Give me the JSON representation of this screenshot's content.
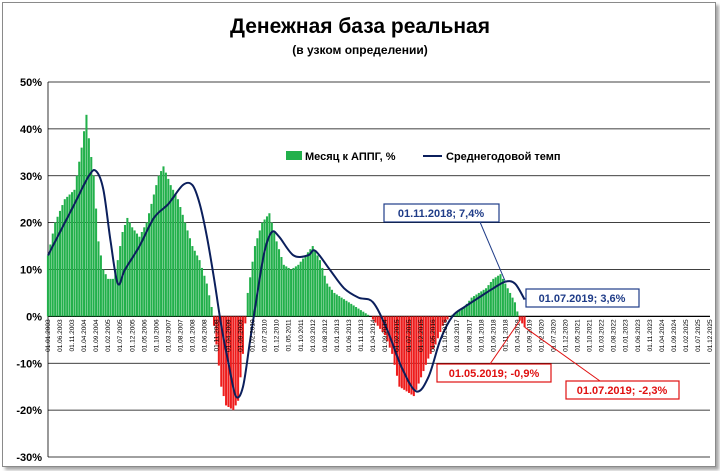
{
  "chart_data": {
    "type": "bar",
    "title": "Денежная база реальная",
    "subtitle": "(в узком определении)",
    "ylim": [
      -30,
      50
    ],
    "yticks": [
      -30,
      -20,
      -10,
      0,
      10,
      20,
      30,
      40,
      50
    ],
    "ytick_suffix": "%",
    "x_tick_labels": [
      "01.01.2003",
      "01.06.2003",
      "01.11.2003",
      "01.04.2004",
      "01.09.2004",
      "01.02.2005",
      "01.07.2005",
      "01.12.2005",
      "01.05.2006",
      "01.10.2006",
      "01.03.2007",
      "01.08.2007",
      "01.01.2008",
      "01.06.2008",
      "01.11.2008",
      "01.04.2009",
      "01.09.2009",
      "01.02.2010",
      "01.07.2010",
      "01.12.2010",
      "01.05.2011",
      "01.10.2011",
      "01.03.2012",
      "01.08.2012",
      "01.01.2013",
      "01.06.2013",
      "01.11.2013",
      "01.04.2014",
      "01.09.2014",
      "01.02.2015",
      "01.07.2015",
      "01.12.2015",
      "01.05.2016",
      "01.10.2016",
      "01.03.2017",
      "01.08.2017",
      "01.01.2018",
      "01.06.2018",
      "01.11.2018",
      "01.04.2019",
      "01.09.2019",
      "01.02.2020",
      "01.07.2020",
      "01.12.2020",
      "01.05.2021",
      "01.10.2021",
      "01.03.2022",
      "01.08.2022",
      "01.01.2023",
      "01.06.2023",
      "01.11.2023",
      "01.04.2024",
      "01.09.2024",
      "01.02.2025",
      "01.07.2025",
      "01.12.2025"
    ],
    "x_start": "01.01.2003",
    "x_end": "01.12.2025",
    "legend": {
      "placement": "top-center",
      "bars_label": "Месяц к АППГ, %",
      "line_label": "Среднегодовой темп"
    },
    "colors": {
      "positive_bar": "#22b04b",
      "negative_bar": "#ee1c1c",
      "line": "#0b1f5c",
      "ann_blue": "#1f3c88",
      "ann_red": "#e01010",
      "grid": "#000000"
    },
    "bar_series": {
      "name": "Месяц к АППГ, %",
      "anchors": [
        [
          "01.01.2003",
          13
        ],
        [
          "01.04.2003",
          20
        ],
        [
          "01.08.2003",
          25
        ],
        [
          "01.12.2003",
          27
        ],
        [
          "01.03.2004",
          36
        ],
        [
          "01.05.2004",
          43
        ],
        [
          "01.06.2004",
          38
        ],
        [
          "01.08.2004",
          30
        ],
        [
          "01.10.2004",
          16
        ],
        [
          "01.12.2004",
          10
        ],
        [
          "01.02.2005",
          8
        ],
        [
          "01.04.2005",
          8
        ],
        [
          "01.06.2005",
          12
        ],
        [
          "01.08.2005",
          18
        ],
        [
          "01.10.2005",
          21
        ],
        [
          "01.12.2005",
          19
        ],
        [
          "01.03.2006",
          17
        ],
        [
          "01.06.2006",
          20
        ],
        [
          "01.09.2006",
          26
        ],
        [
          "01.11.2006",
          30
        ],
        [
          "01.01.2007",
          32
        ],
        [
          "01.04.2007",
          28
        ],
        [
          "01.07.2007",
          25
        ],
        [
          "01.10.2007",
          20
        ],
        [
          "01.01.2008",
          15
        ],
        [
          "01.04.2008",
          12
        ],
        [
          "01.07.2008",
          7
        ],
        [
          "01.09.2008",
          2
        ],
        [
          "01.11.2008",
          -6
        ],
        [
          "01.01.2009",
          -15
        ],
        [
          "01.03.2009",
          -19
        ],
        [
          "01.06.2009",
          -20
        ],
        [
          "01.08.2009",
          -18
        ],
        [
          "01.10.2009",
          -8
        ],
        [
          "01.12.2009",
          5
        ],
        [
          "01.03.2010",
          15
        ],
        [
          "01.06.2010",
          20
        ],
        [
          "01.09.2010",
          22
        ],
        [
          "01.12.2010",
          16
        ],
        [
          "01.03.2011",
          11
        ],
        [
          "01.06.2011",
          10
        ],
        [
          "01.09.2011",
          11
        ],
        [
          "01.12.2011",
          13
        ],
        [
          "01.03.2012",
          15
        ],
        [
          "01.06.2012",
          12
        ],
        [
          "01.09.2012",
          7
        ],
        [
          "01.12.2012",
          5
        ],
        [
          "01.03.2013",
          4
        ],
        [
          "01.06.2013",
          3
        ],
        [
          "01.09.2013",
          2
        ],
        [
          "01.12.2013",
          1
        ],
        [
          "01.03.2014",
          0
        ],
        [
          "01.06.2014",
          -2
        ],
        [
          "01.09.2014",
          -4
        ],
        [
          "01.12.2014",
          -8
        ],
        [
          "01.03.2015",
          -15
        ],
        [
          "01.06.2015",
          -16
        ],
        [
          "01.09.2015",
          -17
        ],
        [
          "01.12.2015",
          -13
        ],
        [
          "01.03.2016",
          -9
        ],
        [
          "01.06.2016",
          -6
        ],
        [
          "01.09.2016",
          -2
        ],
        [
          "01.12.2016",
          0
        ],
        [
          "01.03.2017",
          1
        ],
        [
          "01.06.2017",
          2
        ],
        [
          "01.09.2017",
          4
        ],
        [
          "01.12.2017",
          5
        ],
        [
          "01.03.2018",
          6
        ],
        [
          "01.06.2018",
          8
        ],
        [
          "01.09.2018",
          9
        ],
        [
          "01.11.2018",
          7
        ],
        [
          "01.01.2019",
          5
        ],
        [
          "01.03.2019",
          3
        ],
        [
          "01.05.2019",
          -0.9
        ],
        [
          "01.06.2019",
          -1.5
        ],
        [
          "01.07.2019",
          -2.3
        ]
      ]
    },
    "line_series": {
      "name": "Среднегодовой темп",
      "anchors": [
        [
          "01.01.2003",
          13
        ],
        [
          "01.06.2003",
          18
        ],
        [
          "01.12.2003",
          24
        ],
        [
          "01.06.2004",
          30
        ],
        [
          "01.09.2004",
          31
        ],
        [
          "01.12.2004",
          27
        ],
        [
          "01.03.2005",
          16
        ],
        [
          "01.06.2005",
          7
        ],
        [
          "01.09.2005",
          10
        ],
        [
          "01.03.2006",
          15
        ],
        [
          "01.09.2006",
          21
        ],
        [
          "01.03.2007",
          24
        ],
        [
          "01.09.2007",
          28
        ],
        [
          "01.01.2008",
          28
        ],
        [
          "01.04.2008",
          24
        ],
        [
          "01.07.2008",
          17
        ],
        [
          "01.10.2008",
          8
        ],
        [
          "01.01.2009",
          -2
        ],
        [
          "01.04.2009",
          -10
        ],
        [
          "01.07.2009",
          -17
        ],
        [
          "01.10.2009",
          -15
        ],
        [
          "01.01.2010",
          -5
        ],
        [
          "01.04.2010",
          5
        ],
        [
          "01.07.2010",
          14
        ],
        [
          "01.10.2010",
          18
        ],
        [
          "01.01.2011",
          17
        ],
        [
          "01.07.2011",
          13
        ],
        [
          "01.01.2012",
          13
        ],
        [
          "01.04.2012",
          14
        ],
        [
          "01.10.2012",
          10
        ],
        [
          "01.04.2013",
          6
        ],
        [
          "01.10.2013",
          4
        ],
        [
          "01.04.2014",
          3
        ],
        [
          "01.10.2014",
          -3
        ],
        [
          "01.04.2015",
          -11
        ],
        [
          "01.10.2015",
          -16
        ],
        [
          "01.03.2016",
          -13
        ],
        [
          "01.08.2016",
          -5
        ],
        [
          "01.01.2017",
          0
        ],
        [
          "01.06.2017",
          2
        ],
        [
          "01.12.2017",
          4
        ],
        [
          "01.06.2018",
          6
        ],
        [
          "01.11.2018",
          7.4
        ],
        [
          "01.03.2019",
          7
        ],
        [
          "01.07.2019",
          3.6
        ]
      ]
    },
    "annotations": [
      {
        "label": "01.11.2018; 7,4%",
        "date": "01.11.2018",
        "value": 7.4,
        "color": "blue"
      },
      {
        "label": "01.07.2019; 3,6%",
        "date": "01.07.2019",
        "value": 3.6,
        "color": "blue"
      },
      {
        "label": "01.05.2019; -0,9%",
        "date": "01.05.2019",
        "value": -0.9,
        "color": "red"
      },
      {
        "label": "01.07.2019; -2,3%",
        "date": "01.07.2019",
        "value": -2.3,
        "color": "red"
      }
    ]
  }
}
